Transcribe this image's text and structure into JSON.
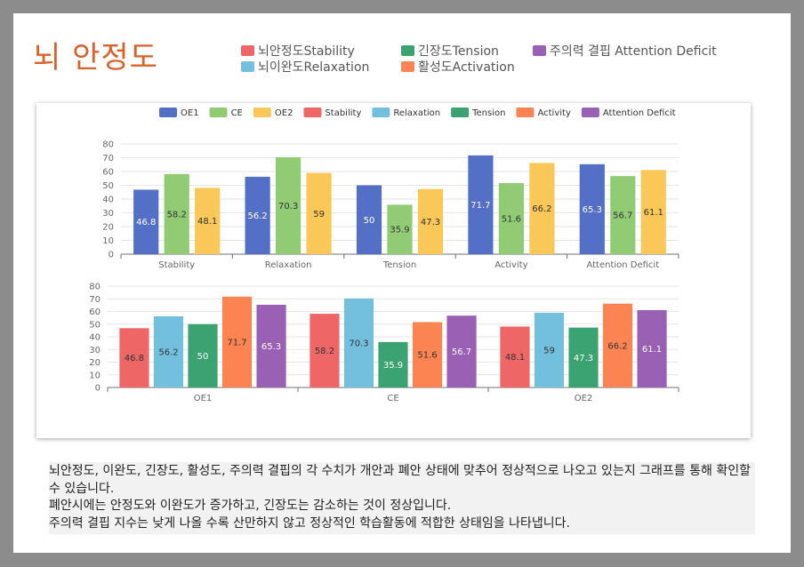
{
  "title": "뇌 안정도",
  "top_legend": [
    {
      "label": "뇌안정도Stability",
      "color": "#ee6666"
    },
    {
      "label": "긴장도Tension",
      "color": "#3ba272"
    },
    {
      "label": "주의력 결핍 Attention Deficit",
      "color": "#9a60b4"
    },
    {
      "label": "뇌이완도Relaxation",
      "color": "#73c0de"
    },
    {
      "label": "활성도Activation",
      "color": "#fc8452"
    }
  ],
  "chart_legend": [
    {
      "label": "OE1",
      "color": "#5470c6"
    },
    {
      "label": "CE",
      "color": "#91cc75"
    },
    {
      "label": "OE2",
      "color": "#fac858"
    },
    {
      "label": "Stability",
      "color": "#ee6666"
    },
    {
      "label": "Relaxation",
      "color": "#73c0de"
    },
    {
      "label": "Tension",
      "color": "#3ba272"
    },
    {
      "label": "Activity",
      "color": "#fc8452"
    },
    {
      "label": "Attention Deficit",
      "color": "#9a60b4"
    }
  ],
  "chart_data": [
    {
      "type": "bar",
      "categories": [
        "Stability",
        "Relaxation",
        "Tension",
        "Activity",
        "Attention Deficit"
      ],
      "yticks": [
        0,
        10,
        20,
        30,
        40,
        50,
        60,
        70,
        80
      ],
      "ylim": [
        0,
        80
      ],
      "series": [
        {
          "name": "OE1",
          "color": "#5470c6",
          "label_color": "#ffffff",
          "values": [
            46.8,
            56.2,
            50,
            71.7,
            65.3
          ]
        },
        {
          "name": "CE",
          "color": "#91cc75",
          "label_color": "#333333",
          "values": [
            58.2,
            70.3,
            35.9,
            51.6,
            56.7
          ]
        },
        {
          "name": "OE2",
          "color": "#fac858",
          "label_color": "#333333",
          "values": [
            48.1,
            59,
            47.3,
            66.2,
            61.1
          ]
        }
      ]
    },
    {
      "type": "bar",
      "categories": [
        "OE1",
        "CE",
        "OE2"
      ],
      "yticks": [
        0,
        10,
        20,
        30,
        40,
        50,
        60,
        70,
        80
      ],
      "ylim": [
        0,
        80
      ],
      "series": [
        {
          "name": "Stability",
          "color": "#ee6666",
          "label_color": "#333333",
          "values": [
            46.8,
            58.2,
            48.1
          ]
        },
        {
          "name": "Relaxation",
          "color": "#73c0de",
          "label_color": "#333333",
          "values": [
            56.2,
            70.3,
            59
          ]
        },
        {
          "name": "Tension",
          "color": "#3ba272",
          "label_color": "#ffffff",
          "values": [
            50,
            35.9,
            47.3
          ]
        },
        {
          "name": "Activity",
          "color": "#fc8452",
          "label_color": "#333333",
          "values": [
            71.7,
            51.6,
            66.2
          ]
        },
        {
          "name": "Attention Deficit",
          "color": "#9a60b4",
          "label_color": "#ffffff",
          "values": [
            65.3,
            56.7,
            61.1
          ]
        }
      ]
    }
  ],
  "note_lines": [
    "뇌안정도, 이완도, 긴장도, 활성도, 주의력 결핍의 각 수치가 개안과 폐안 상태에 맞추어 정상적으로 나오고 있는지 그래프를 통해 확인할 수 있습니다.",
    "폐안시에는 안정도와 이완도가 증가하고, 긴장도는 감소하는 것이 정상입니다.",
    "주의력 결핍 지수는 낮게 나올 수록 산만하지 않고 정상적인 학습활동에 적합한 상태임을 나타냅니다."
  ]
}
